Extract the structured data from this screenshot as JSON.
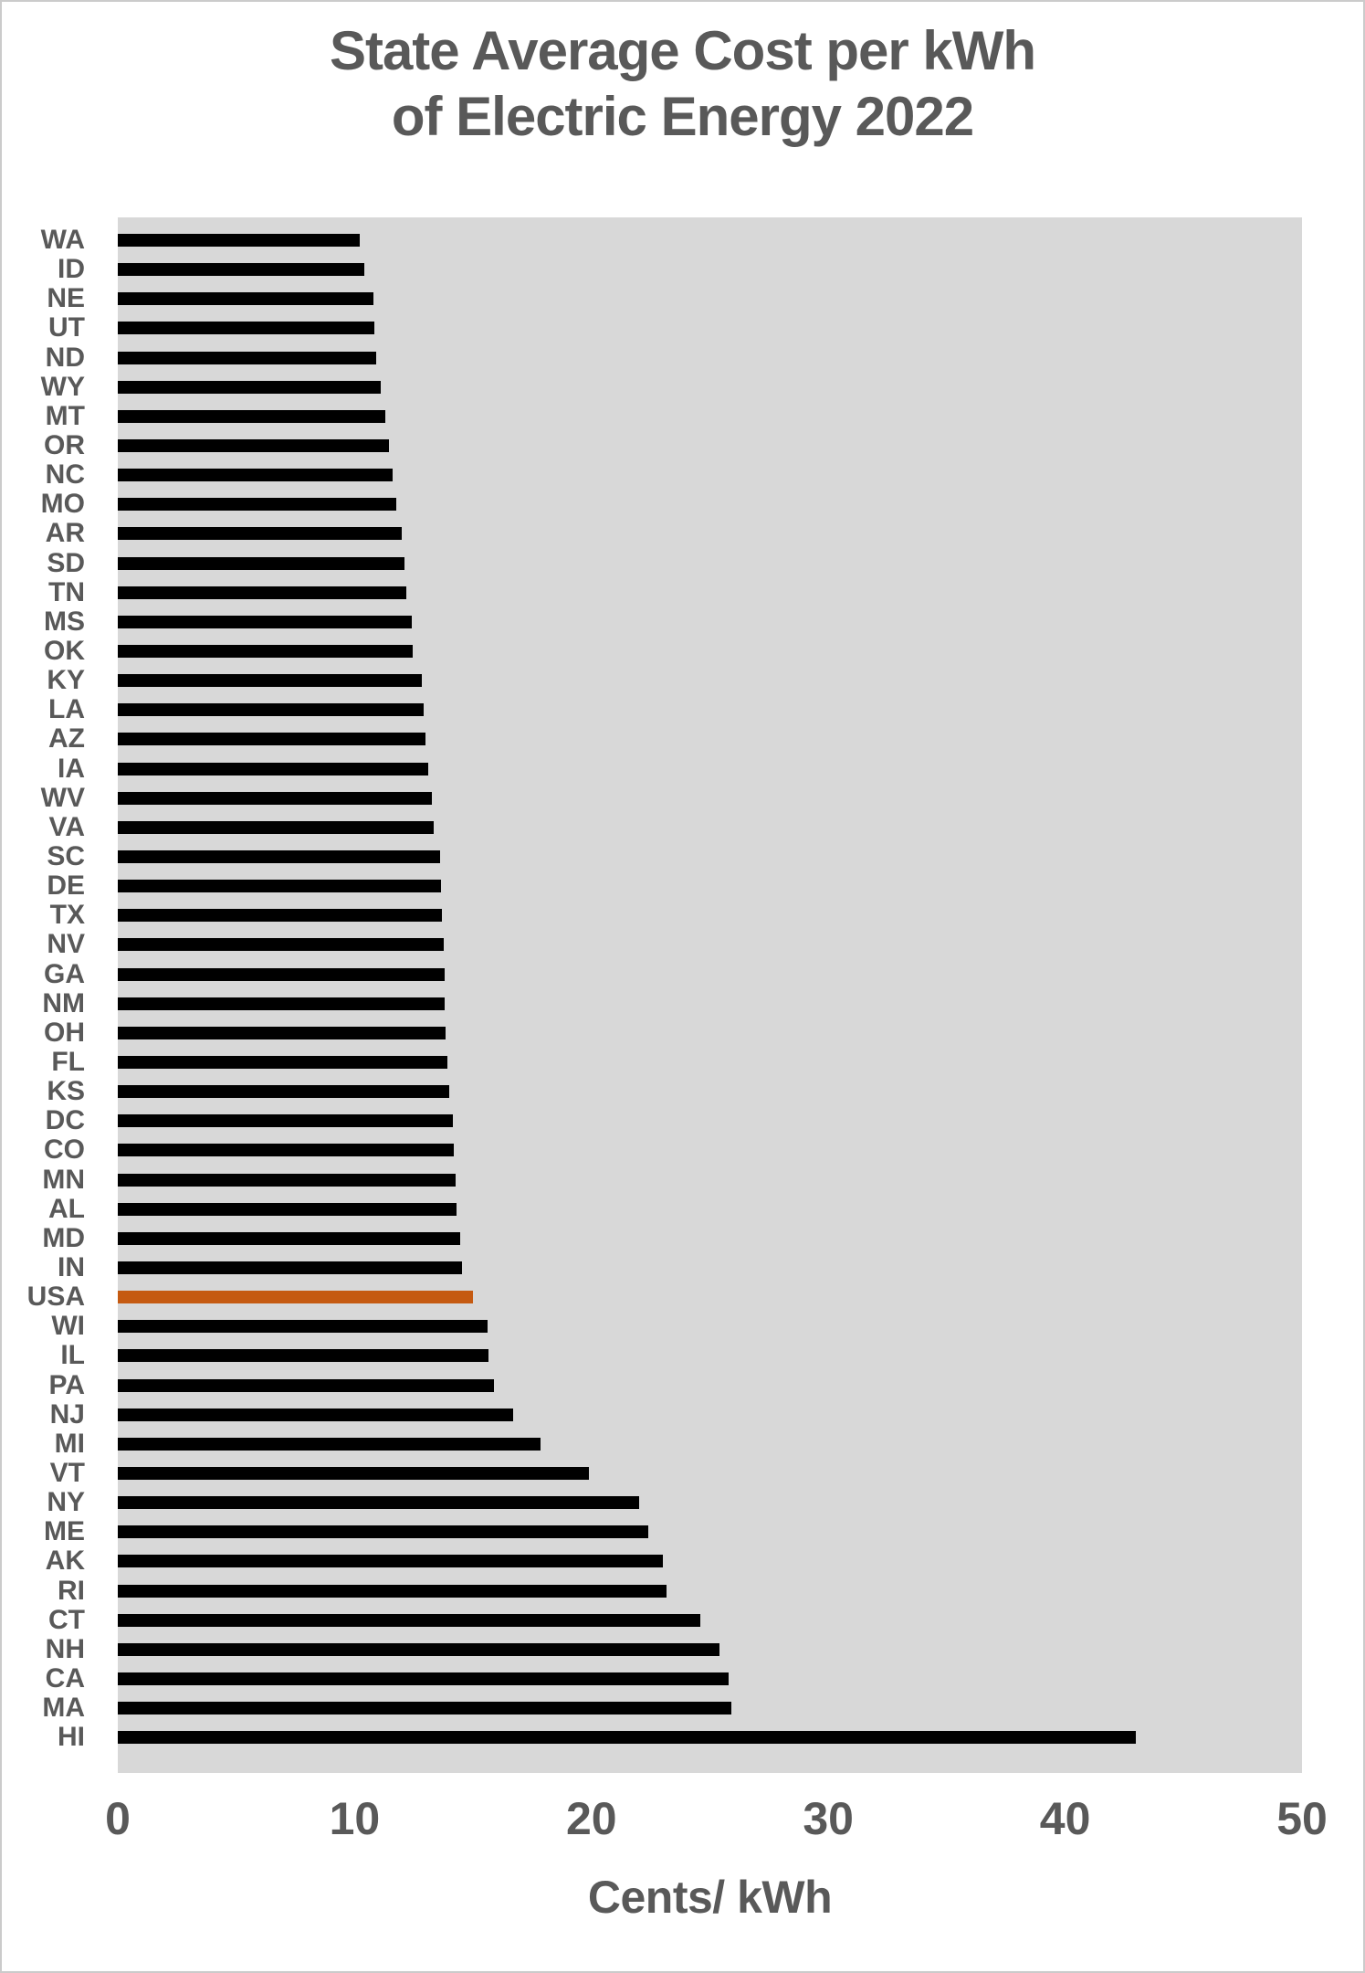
{
  "page": {
    "title_line1": "State Average Cost per kWh",
    "title_line2": "of Electric Energy 2022"
  },
  "chart_data": {
    "type": "bar",
    "orientation": "horizontal",
    "title": "State Average Cost per kWh of Electric Energy 2022",
    "xlabel": "Cents/ kWh",
    "xlim": [
      0,
      50
    ],
    "x_ticks": [
      0,
      10,
      20,
      30,
      40,
      50
    ],
    "grid": false,
    "legend": false,
    "plot_bg_color": "#D8D8D8",
    "bar_color": "#000000",
    "highlight_category": "USA",
    "highlight_color": "#C55A11",
    "text_color": "#595959",
    "categories": [
      "WA",
      "ID",
      "NE",
      "UT",
      "ND",
      "WY",
      "MT",
      "OR",
      "NC",
      "MO",
      "AR",
      "SD",
      "TN",
      "MS",
      "OK",
      "KY",
      "LA",
      "AZ",
      "IA",
      "WV",
      "VA",
      "SC",
      "DE",
      "TX",
      "NV",
      "GA",
      "NM",
      "OH",
      "FL",
      "KS",
      "DC",
      "CO",
      "MN",
      "AL",
      "MD",
      "IN",
      "USA",
      "WI",
      "IL",
      "PA",
      "NJ",
      "MI",
      "VT",
      "NY",
      "ME",
      "AK",
      "RI",
      "CT",
      "NH",
      "CA",
      "MA",
      "HI"
    ],
    "values": [
      10.2,
      10.4,
      10.8,
      10.85,
      10.9,
      11.1,
      11.3,
      11.45,
      11.6,
      11.75,
      12.0,
      12.1,
      12.2,
      12.4,
      12.45,
      12.85,
      12.9,
      13.0,
      13.1,
      13.25,
      13.35,
      13.6,
      13.65,
      13.7,
      13.75,
      13.8,
      13.8,
      13.85,
      13.9,
      14.0,
      14.15,
      14.2,
      14.25,
      14.3,
      14.45,
      14.55,
      15.0,
      15.6,
      15.65,
      15.9,
      16.7,
      17.85,
      19.9,
      22.0,
      22.4,
      23.0,
      23.15,
      24.6,
      25.4,
      25.8,
      25.9,
      43.0
    ]
  }
}
